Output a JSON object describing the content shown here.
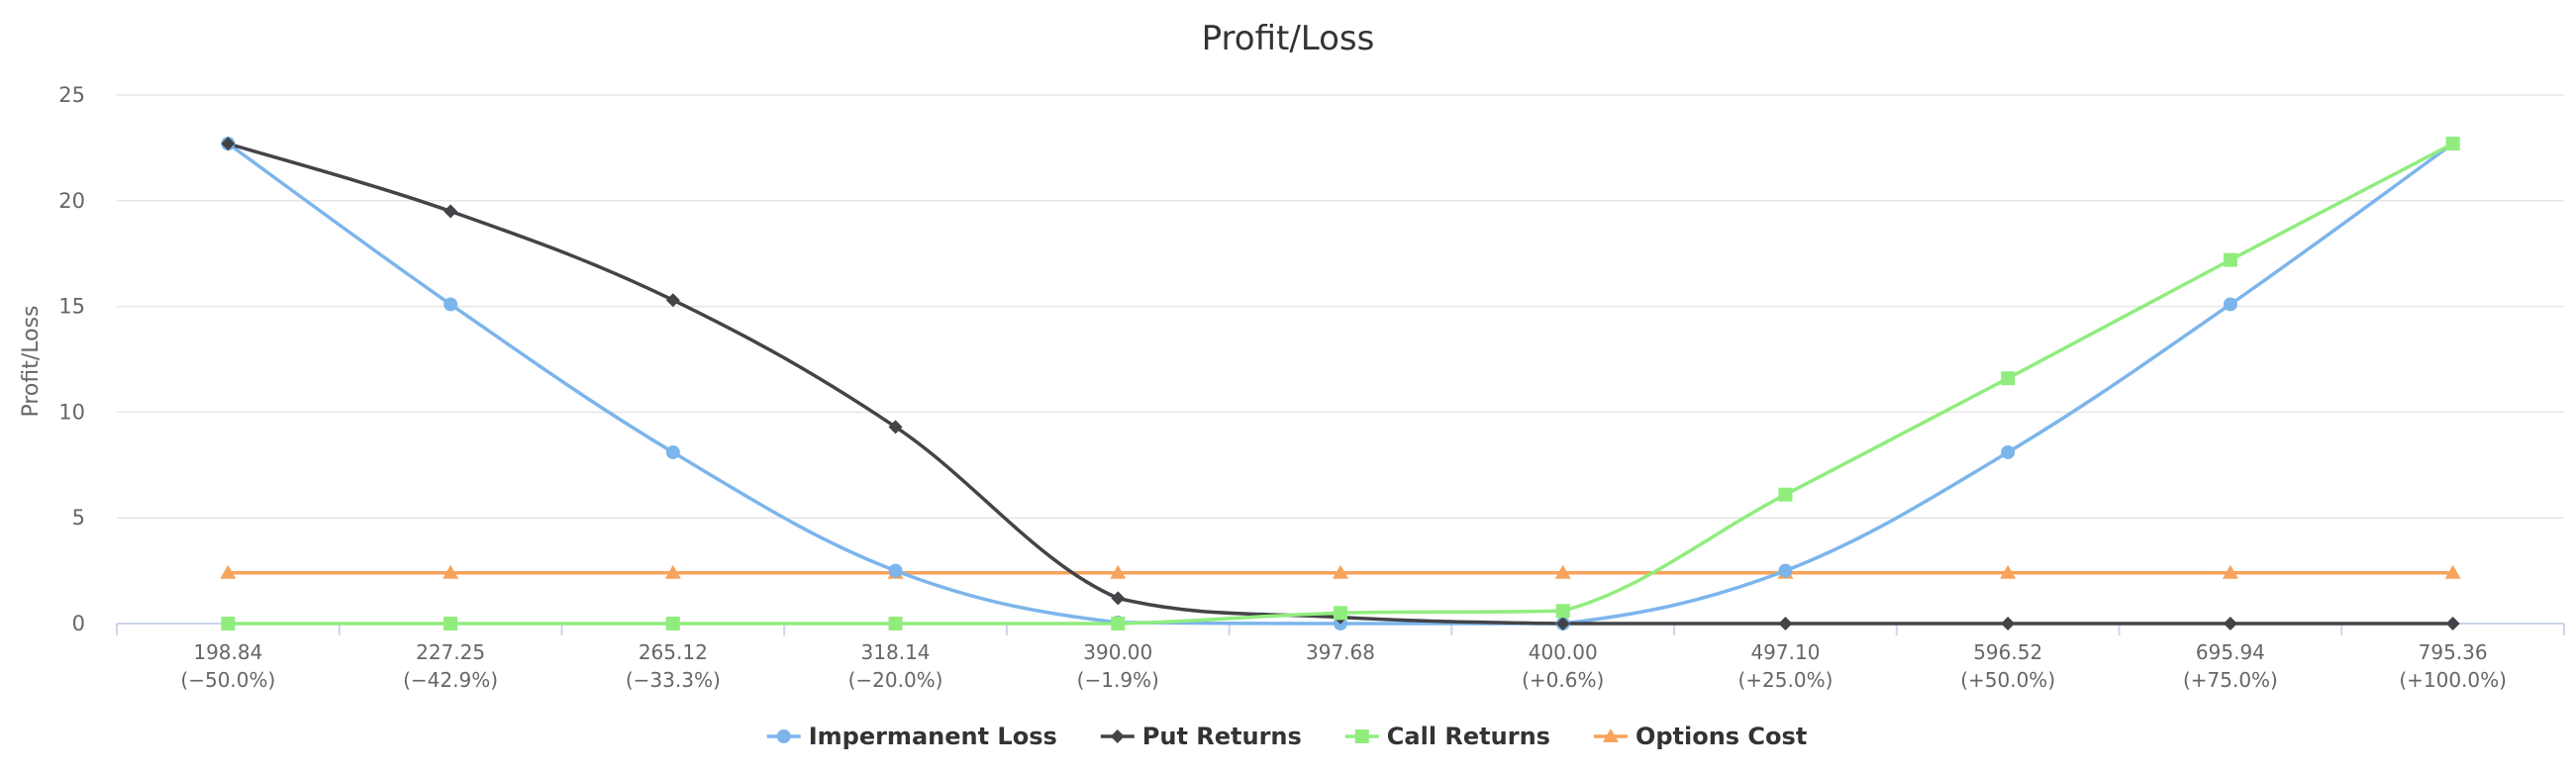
{
  "chart_data": {
    "type": "line",
    "title": "Profit/Loss",
    "ylabel": "Profit/Loss",
    "xlabel": "",
    "ylim": [
      0,
      25
    ],
    "yticks": [
      0,
      5,
      10,
      15,
      20,
      25
    ],
    "grid": true,
    "legend_position": "bottom",
    "categories": [
      "198.84",
      "227.25",
      "265.12",
      "318.14",
      "390.00",
      "397.68",
      "400.00",
      "497.10",
      "596.52",
      "695.94",
      "795.36"
    ],
    "category_sublabels": [
      "(−50.0%)",
      "(−42.9%)",
      "(−33.3%)",
      "(−20.0%)",
      "(−1.9%)",
      "",
      "(+0.6%)",
      "(+25.0%)",
      "(+50.0%)",
      "(+75.0%)",
      "(+100.0%)"
    ],
    "series": [
      {
        "name": "Impermanent Loss",
        "color": "#7cb5ec",
        "marker": "circle",
        "values": [
          22.7,
          15.1,
          8.1,
          2.5,
          0.05,
          0.0,
          0.0,
          2.5,
          8.1,
          15.1,
          22.7
        ]
      },
      {
        "name": "Put Returns",
        "color": "#434348",
        "marker": "diamond",
        "values": [
          22.7,
          19.5,
          15.3,
          9.3,
          1.2,
          0.3,
          0.0,
          0.0,
          0.0,
          0.0,
          0.0
        ]
      },
      {
        "name": "Call Returns",
        "color": "#90ed7d",
        "marker": "square",
        "values": [
          0.0,
          0.0,
          0.0,
          0.0,
          0.0,
          0.5,
          0.6,
          6.1,
          11.6,
          17.2,
          22.7
        ]
      },
      {
        "name": "Options Cost",
        "color": "#f7a35c",
        "marker": "triangle",
        "values": [
          2.4,
          2.4,
          2.4,
          2.4,
          2.4,
          2.4,
          2.4,
          2.4,
          2.4,
          2.4,
          2.4
        ]
      }
    ]
  }
}
